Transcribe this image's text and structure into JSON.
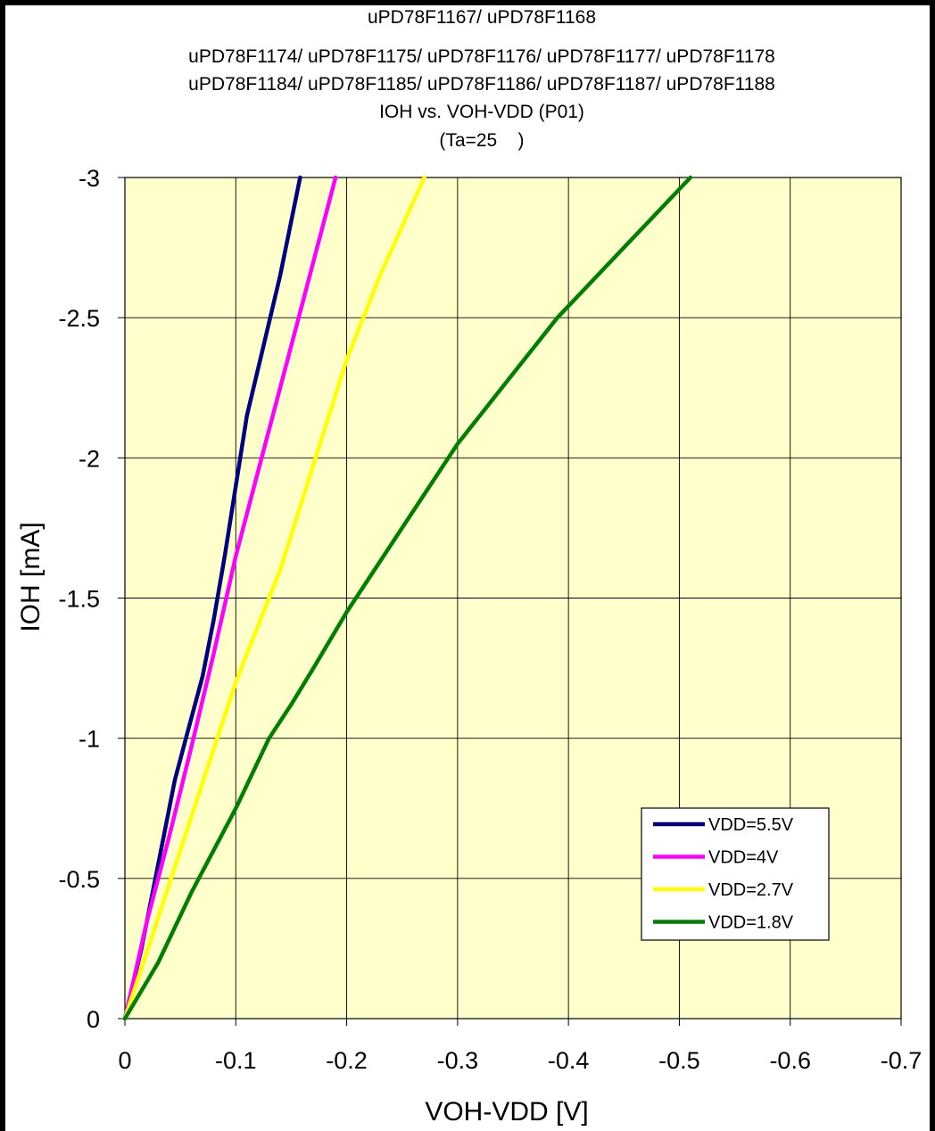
{
  "chart_data": {
    "type": "line",
    "title_lines": [
      "uPD78F1167/ uPD78F1168",
      "uPD78F1174/ uPD78F1175/ uPD78F1176/ uPD78F1177/ uPD78F1178",
      "uPD78F1184/ uPD78F1185/ uPD78F1186/ uPD78F1187/ uPD78F1188",
      "IOH vs. VOH-VDD (P01)",
      "(Ta=25    )"
    ],
    "xlabel": "VOH-VDD [V]",
    "ylabel": "IOH [mA]",
    "xlim": [
      0,
      -0.7
    ],
    "ylim": [
      0,
      -3
    ],
    "xticks": [
      {
        "value": 0,
        "label": "0"
      },
      {
        "value": -0.1,
        "label": "-0.1"
      },
      {
        "value": -0.2,
        "label": "-0.2"
      },
      {
        "value": -0.3,
        "label": "-0.3"
      },
      {
        "value": -0.4,
        "label": "-0.4"
      },
      {
        "value": -0.5,
        "label": "-0.5"
      },
      {
        "value": -0.6,
        "label": "-0.6"
      },
      {
        "value": -0.7,
        "label": "-0.7"
      }
    ],
    "yticks": [
      {
        "value": 0,
        "label": "0"
      },
      {
        "value": -0.5,
        "label": "-0.5"
      },
      {
        "value": -1,
        "label": "-1"
      },
      {
        "value": -1.5,
        "label": "-1.5"
      },
      {
        "value": -2,
        "label": "-2"
      },
      {
        "value": -2.5,
        "label": "-2.5"
      },
      {
        "value": -3,
        "label": "-3"
      }
    ],
    "grid": true,
    "legend_position": "bottom-right",
    "plot_background": "#ffffcc",
    "series": [
      {
        "name": "VDD=5.5V",
        "color": "#000080",
        "x": [
          0,
          -0.015,
          -0.03,
          -0.045,
          -0.055,
          -0.07,
          -0.08,
          -0.09,
          -0.1,
          -0.11,
          -0.125,
          -0.14,
          -0.158
        ],
        "y": [
          0,
          -0.25,
          -0.55,
          -0.85,
          -1.0,
          -1.22,
          -1.42,
          -1.65,
          -1.9,
          -2.15,
          -2.4,
          -2.65,
          -3.0
        ]
      },
      {
        "name": "VDD=4V",
        "color": "#ff00ff",
        "x": [
          0,
          -0.02,
          -0.04,
          -0.06,
          -0.08,
          -0.1,
          -0.12,
          -0.14,
          -0.16,
          -0.19
        ],
        "y": [
          0,
          -0.35,
          -0.65,
          -0.97,
          -1.3,
          -1.65,
          -1.95,
          -2.25,
          -2.55,
          -3.0
        ]
      },
      {
        "name": "VDD=2.7V",
        "color": "#ffff00",
        "x": [
          0,
          -0.025,
          -0.05,
          -0.075,
          -0.1,
          -0.13,
          -0.14,
          -0.16,
          -0.18,
          -0.2,
          -0.23,
          -0.27
        ],
        "y": [
          0,
          -0.3,
          -0.6,
          -0.9,
          -1.2,
          -1.5,
          -1.6,
          -1.85,
          -2.1,
          -2.35,
          -2.65,
          -3.0
        ]
      },
      {
        "name": "VDD=1.8V",
        "color": "#008000",
        "x": [
          0,
          -0.03,
          -0.06,
          -0.08,
          -0.1,
          -0.13,
          -0.15,
          -0.17,
          -0.2,
          -0.25,
          -0.3,
          -0.35,
          -0.39,
          -0.45,
          -0.51
        ],
        "y": [
          0,
          -0.2,
          -0.45,
          -0.6,
          -0.75,
          -1.0,
          -1.12,
          -1.25,
          -1.45,
          -1.75,
          -2.05,
          -2.3,
          -2.5,
          -2.75,
          -3.0
        ]
      }
    ]
  }
}
